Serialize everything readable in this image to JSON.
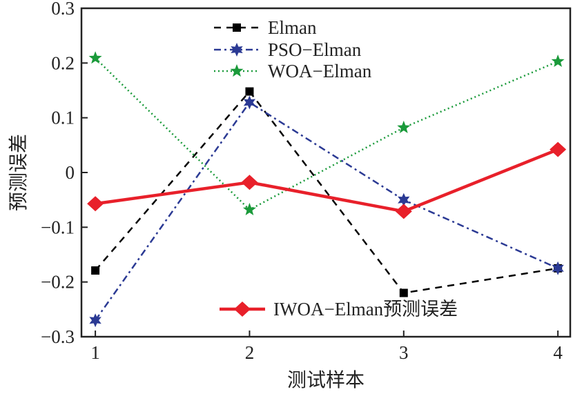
{
  "chart_data": {
    "type": "line",
    "title": "",
    "xlabel": "测试样本",
    "ylabel": "预测误差",
    "x": [
      1,
      2,
      3,
      4
    ],
    "xticks": [
      "1",
      "2",
      "3",
      "4"
    ],
    "yticks": [
      "0.3",
      "0.2",
      "0.1",
      "0",
      "−0.1",
      "−0.2",
      "−0.3"
    ],
    "ylim": [
      -0.3,
      0.3
    ],
    "xlim": [
      0.91,
      4.08
    ],
    "grid": false,
    "series": [
      {
        "name": "Elman",
        "values": [
          -0.179,
          0.148,
          -0.22,
          -0.175
        ],
        "color": "#000000",
        "marker": "square",
        "dash": "10,8",
        "width": 2.5
      },
      {
        "name": "PSO−Elman",
        "values": [
          -0.27,
          0.128,
          -0.05,
          -0.175
        ],
        "color": "#2b3a94",
        "marker": "star6",
        "dash": "10,5,3,5",
        "width": 2.5
      },
      {
        "name": "WOA−Elman",
        "values": [
          0.209,
          -0.068,
          0.082,
          0.203
        ],
        "color": "#1a9a3a",
        "marker": "star5",
        "dash": "2,4",
        "width": 2.5
      },
      {
        "name": "IWOA−Elman预测误差",
        "values": [
          -0.057,
          -0.018,
          -0.071,
          0.042
        ],
        "color": "#e8202a",
        "marker": "diamond",
        "dash": "",
        "width": 4.5
      }
    ],
    "legend_placement": "top-center and bottom-center"
  }
}
